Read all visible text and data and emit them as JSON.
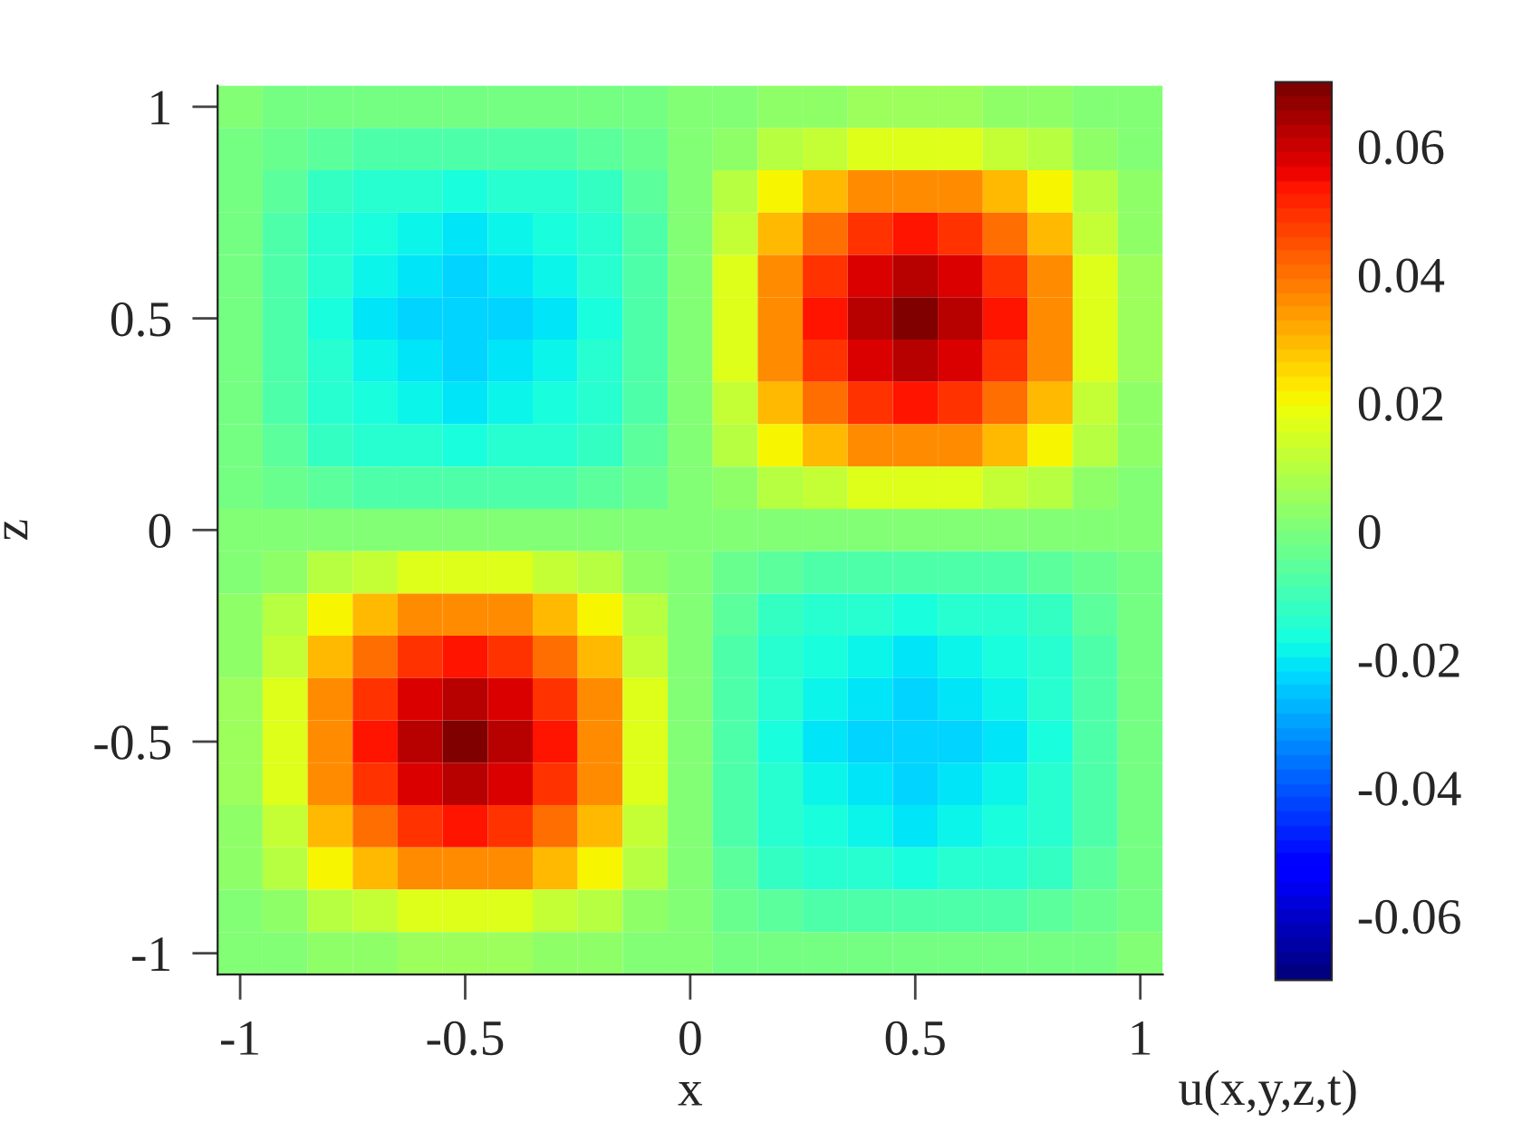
{
  "chart_data": {
    "type": "heatmap",
    "xlabel": "x",
    "ylabel": "z",
    "clabel": "u(x,y,z,t)",
    "categories": [
      "-1",
      null,
      null,
      null,
      null,
      "-0.5",
      null,
      null,
      null,
      null,
      "0",
      null,
      null,
      null,
      null,
      "0.5",
      null,
      null,
      null,
      null,
      "1"
    ],
    "y_categories": [
      "1",
      null,
      null,
      null,
      null,
      "0.5",
      null,
      null,
      null,
      null,
      "0",
      null,
      null,
      null,
      null,
      "-0.5",
      null,
      null,
      null,
      null,
      "-1"
    ],
    "cells": [
      [
        0,
        -0.001,
        -0.001,
        -0.002,
        -0.002,
        -0.002,
        -0.002,
        -0.002,
        -0.001,
        -0.001,
        0.001,
        0.001,
        0.003,
        0.004,
        0.005,
        0.005,
        0.005,
        0.004,
        0.003,
        0.001,
        0
      ],
      [
        -0.001,
        -0.003,
        -0.005,
        -0.007,
        -0.008,
        -0.008,
        -0.008,
        -0.007,
        -0.005,
        -0.003,
        0.001,
        0.004,
        0.009,
        0.013,
        0.016,
        0.017,
        0.016,
        0.013,
        0.009,
        0.004,
        0.001
      ],
      [
        -0.001,
        -0.005,
        -0.011,
        -0.014,
        -0.015,
        -0.016,
        -0.015,
        -0.014,
        -0.011,
        -0.005,
        0.001,
        0.009,
        0.021,
        0.029,
        0.035,
        0.037,
        0.035,
        0.029,
        0.021,
        0.009,
        0.003
      ],
      [
        -0.002,
        -0.007,
        -0.014,
        -0.017,
        -0.019,
        -0.02,
        -0.019,
        -0.017,
        -0.014,
        -0.007,
        0.001,
        0.013,
        0.029,
        0.041,
        0.049,
        0.053,
        0.049,
        0.041,
        0.029,
        0.013,
        0.004
      ],
      [
        -0.002,
        -0.008,
        -0.015,
        -0.019,
        -0.021,
        -0.022,
        -0.021,
        -0.019,
        -0.015,
        -0.008,
        0.001,
        0.016,
        0.035,
        0.049,
        0.059,
        0.063,
        0.059,
        0.049,
        0.035,
        0.016,
        0.005
      ],
      [
        -0.002,
        -0.008,
        -0.016,
        -0.02,
        -0.022,
        -0.023,
        -0.022,
        -0.02,
        -0.016,
        -0.008,
        0.001,
        0.017,
        0.037,
        0.053,
        0.063,
        0.068,
        0.063,
        0.053,
        0.037,
        0.017,
        0.005
      ],
      [
        -0.002,
        -0.008,
        -0.015,
        -0.019,
        -0.021,
        -0.022,
        -0.021,
        -0.019,
        -0.015,
        -0.008,
        0.001,
        0.016,
        0.035,
        0.049,
        0.059,
        0.063,
        0.059,
        0.049,
        0.035,
        0.016,
        0.005
      ],
      [
        -0.002,
        -0.007,
        -0.014,
        -0.017,
        -0.019,
        -0.02,
        -0.019,
        -0.017,
        -0.014,
        -0.007,
        0.001,
        0.013,
        0.029,
        0.041,
        0.049,
        0.053,
        0.049,
        0.041,
        0.029,
        0.013,
        0.004
      ],
      [
        -0.001,
        -0.005,
        -0.011,
        -0.014,
        -0.015,
        -0.016,
        -0.015,
        -0.014,
        -0.011,
        -0.005,
        0.001,
        0.009,
        0.021,
        0.029,
        0.035,
        0.037,
        0.035,
        0.029,
        0.021,
        0.009,
        0.003
      ],
      [
        -0.001,
        -0.003,
        -0.005,
        -0.007,
        -0.008,
        -0.008,
        -0.008,
        -0.007,
        -0.005,
        -0.003,
        0.001,
        0.004,
        0.009,
        0.013,
        0.016,
        0.017,
        0.016,
        0.013,
        0.009,
        0.004,
        0.001
      ],
      [
        0.001,
        0.001,
        0.001,
        0.001,
        0.001,
        0.001,
        0.001,
        0.001,
        0.001,
        0.001,
        0.001,
        0.001,
        0.001,
        0.001,
        0.001,
        0.001,
        0.001,
        0.001,
        0.001,
        0.001,
        0.001
      ],
      [
        0.001,
        0.004,
        0.009,
        0.013,
        0.016,
        0.017,
        0.016,
        0.013,
        0.009,
        0.004,
        0.001,
        -0.003,
        -0.005,
        -0.007,
        -0.008,
        -0.008,
        -0.008,
        -0.007,
        -0.005,
        -0.003,
        -0.001
      ],
      [
        0.003,
        0.009,
        0.021,
        0.029,
        0.035,
        0.037,
        0.035,
        0.029,
        0.021,
        0.009,
        0.001,
        -0.005,
        -0.011,
        -0.014,
        -0.015,
        -0.016,
        -0.015,
        -0.014,
        -0.011,
        -0.005,
        -0.001
      ],
      [
        0.004,
        0.013,
        0.029,
        0.041,
        0.049,
        0.053,
        0.049,
        0.041,
        0.029,
        0.013,
        0.001,
        -0.007,
        -0.014,
        -0.017,
        -0.019,
        -0.02,
        -0.019,
        -0.017,
        -0.014,
        -0.007,
        -0.002
      ],
      [
        0.005,
        0.016,
        0.035,
        0.049,
        0.059,
        0.063,
        0.059,
        0.049,
        0.035,
        0.016,
        0.001,
        -0.008,
        -0.015,
        -0.019,
        -0.021,
        -0.022,
        -0.021,
        -0.019,
        -0.015,
        -0.008,
        -0.002
      ],
      [
        0.005,
        0.017,
        0.037,
        0.053,
        0.063,
        0.068,
        0.063,
        0.053,
        0.037,
        0.017,
        0.001,
        -0.008,
        -0.016,
        -0.02,
        -0.022,
        -0.023,
        -0.022,
        -0.02,
        -0.016,
        -0.008,
        -0.002
      ],
      [
        0.005,
        0.016,
        0.035,
        0.049,
        0.059,
        0.063,
        0.059,
        0.049,
        0.035,
        0.016,
        0.001,
        -0.008,
        -0.015,
        -0.019,
        -0.021,
        -0.022,
        -0.021,
        -0.019,
        -0.015,
        -0.008,
        -0.002
      ],
      [
        0.004,
        0.013,
        0.029,
        0.041,
        0.049,
        0.053,
        0.049,
        0.041,
        0.029,
        0.013,
        0.001,
        -0.007,
        -0.014,
        -0.017,
        -0.019,
        -0.02,
        -0.019,
        -0.017,
        -0.014,
        -0.007,
        -0.002
      ],
      [
        0.003,
        0.009,
        0.021,
        0.029,
        0.035,
        0.037,
        0.035,
        0.029,
        0.021,
        0.009,
        0.001,
        -0.005,
        -0.011,
        -0.014,
        -0.015,
        -0.016,
        -0.015,
        -0.014,
        -0.011,
        -0.005,
        -0.001
      ],
      [
        0.001,
        0.004,
        0.009,
        0.013,
        0.016,
        0.017,
        0.016,
        0.013,
        0.009,
        0.004,
        0.001,
        -0.003,
        -0.005,
        -0.007,
        -0.008,
        -0.008,
        -0.008,
        -0.007,
        -0.005,
        -0.003,
        -0.001
      ],
      [
        0,
        0.001,
        0.003,
        0.004,
        0.005,
        0.005,
        0.005,
        0.004,
        0.003,
        0.001,
        0.001,
        -0.001,
        -0.001,
        -0.002,
        -0.002,
        -0.002,
        -0.002,
        -0.002,
        -0.001,
        -0.001,
        0
      ]
    ],
    "clim": [
      -0.07,
      0.07
    ],
    "cticks": [
      -0.06,
      -0.04,
      -0.02,
      0,
      0.02,
      0.04,
      0.06
    ]
  }
}
